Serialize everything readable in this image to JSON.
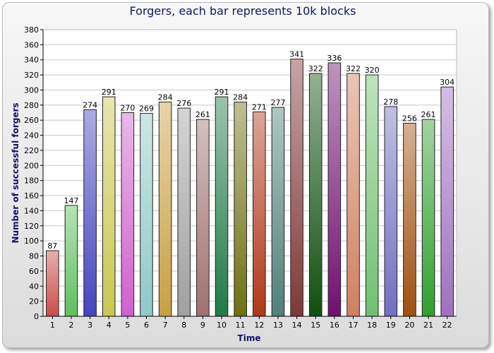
{
  "chart_data": {
    "type": "bar",
    "title": "Forgers, each bar represents 10k blocks",
    "xlabel": "Time",
    "ylabel": "Number of successful forgers",
    "categories": [
      "1",
      "2",
      "3",
      "4",
      "5",
      "6",
      "7",
      "8",
      "9",
      "10",
      "11",
      "12",
      "13",
      "14",
      "15",
      "16",
      "17",
      "18",
      "19",
      "20",
      "21",
      "22"
    ],
    "values": [
      87,
      147,
      274,
      291,
      270,
      269,
      284,
      276,
      261,
      291,
      284,
      271,
      277,
      341,
      322,
      336,
      322,
      320,
      278,
      256,
      261,
      304
    ],
    "ylim": [
      0,
      380
    ],
    "yticks": [
      0,
      20,
      40,
      60,
      80,
      100,
      120,
      140,
      160,
      180,
      200,
      220,
      240,
      260,
      280,
      300,
      320,
      340,
      360,
      380
    ],
    "grid": true,
    "colors": [
      "#cc4c4c",
      "#5fbf5f",
      "#4545c0",
      "#c8c850",
      "#d060d0",
      "#90c8c8",
      "#c8a040",
      "#a0a0a0",
      "#a07070",
      "#207a4a",
      "#707010",
      "#b03818",
      "#508078",
      "#803838",
      "#105010",
      "#701070",
      "#d08060",
      "#70c070",
      "#7070c0",
      "#a05010",
      "#30a030",
      "#a070c0"
    ]
  }
}
